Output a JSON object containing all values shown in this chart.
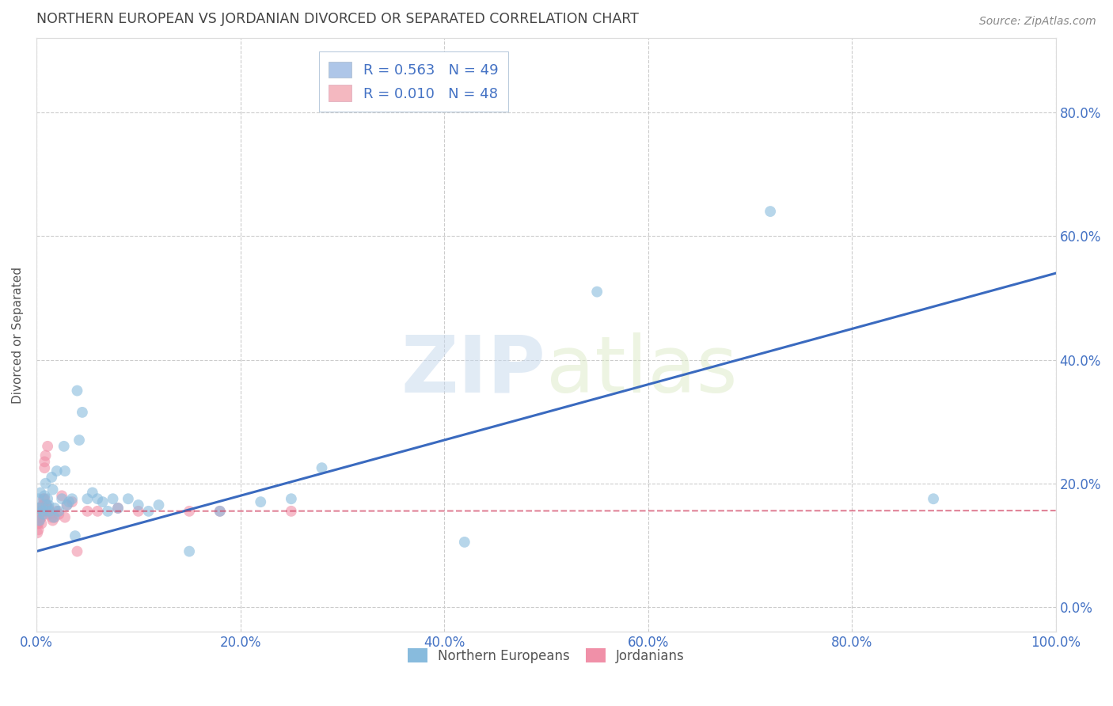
{
  "title": "NORTHERN EUROPEAN VS JORDANIAN DIVORCED OR SEPARATED CORRELATION CHART",
  "source": "Source: ZipAtlas.com",
  "ylabel": "Divorced or Separated",
  "blue_scatter_x": [
    0.001,
    0.002,
    0.003,
    0.004,
    0.005,
    0.006,
    0.007,
    0.008,
    0.009,
    0.01,
    0.011,
    0.012,
    0.013,
    0.015,
    0.016,
    0.017,
    0.018,
    0.02,
    0.022,
    0.025,
    0.027,
    0.028,
    0.03,
    0.032,
    0.035,
    0.038,
    0.04,
    0.042,
    0.045,
    0.05,
    0.055,
    0.06,
    0.065,
    0.07,
    0.075,
    0.08,
    0.09,
    0.1,
    0.11,
    0.12,
    0.15,
    0.18,
    0.22,
    0.25,
    0.28,
    0.42,
    0.55,
    0.72,
    0.88
  ],
  "blue_scatter_y": [
    0.16,
    0.175,
    0.14,
    0.185,
    0.16,
    0.155,
    0.15,
    0.18,
    0.2,
    0.165,
    0.175,
    0.165,
    0.155,
    0.21,
    0.19,
    0.145,
    0.16,
    0.22,
    0.155,
    0.175,
    0.26,
    0.22,
    0.165,
    0.17,
    0.175,
    0.115,
    0.35,
    0.27,
    0.315,
    0.175,
    0.185,
    0.175,
    0.17,
    0.155,
    0.175,
    0.16,
    0.175,
    0.165,
    0.155,
    0.165,
    0.09,
    0.155,
    0.17,
    0.175,
    0.225,
    0.105,
    0.51,
    0.64,
    0.175
  ],
  "pink_scatter_x": [
    0.001,
    0.001,
    0.001,
    0.001,
    0.002,
    0.002,
    0.002,
    0.002,
    0.003,
    0.003,
    0.003,
    0.004,
    0.004,
    0.005,
    0.005,
    0.005,
    0.006,
    0.006,
    0.007,
    0.007,
    0.007,
    0.008,
    0.008,
    0.008,
    0.009,
    0.009,
    0.01,
    0.01,
    0.011,
    0.012,
    0.013,
    0.015,
    0.016,
    0.018,
    0.02,
    0.022,
    0.025,
    0.028,
    0.03,
    0.035,
    0.04,
    0.05,
    0.06,
    0.08,
    0.1,
    0.15,
    0.18,
    0.25
  ],
  "pink_scatter_y": [
    0.155,
    0.145,
    0.135,
    0.12,
    0.155,
    0.145,
    0.135,
    0.125,
    0.16,
    0.15,
    0.14,
    0.155,
    0.145,
    0.155,
    0.145,
    0.135,
    0.165,
    0.155,
    0.175,
    0.165,
    0.155,
    0.235,
    0.225,
    0.175,
    0.245,
    0.165,
    0.165,
    0.155,
    0.26,
    0.16,
    0.15,
    0.145,
    0.14,
    0.145,
    0.155,
    0.15,
    0.18,
    0.145,
    0.165,
    0.17,
    0.09,
    0.155,
    0.155,
    0.16,
    0.155,
    0.155,
    0.155,
    0.155
  ],
  "blue_line_x": [
    0.0,
    1.0
  ],
  "blue_line_y": [
    0.09,
    0.54
  ],
  "pink_line_x": [
    0.0,
    1.0
  ],
  "pink_line_y": [
    0.155,
    0.156
  ],
  "blue_color": "#3a6abf",
  "pink_color": "#d04060",
  "blue_scatter_color": "#88bbdd",
  "pink_scatter_color": "#f090a8",
  "watermark_zip": "ZIP",
  "watermark_atlas": "atlas",
  "background_color": "#ffffff",
  "grid_color": "#cccccc",
  "title_color": "#444444",
  "axis_color": "#4472c4",
  "xlim": [
    0.0,
    1.0
  ],
  "ylim": [
    -0.04,
    0.92
  ],
  "x_ticks": [
    0.0,
    0.2,
    0.4,
    0.6,
    0.8,
    1.0
  ],
  "y_ticks": [
    0.0,
    0.2,
    0.4,
    0.6,
    0.8
  ],
  "legend1_blue_label": "R = 0.563   N = 49",
  "legend1_pink_label": "R = 0.010   N = 48",
  "legend_blue_patch": "#aec6e8",
  "legend_pink_patch": "#f4b8c0",
  "legend_bottom_blue": "Northern Europeans",
  "legend_bottom_pink": "Jordanians"
}
